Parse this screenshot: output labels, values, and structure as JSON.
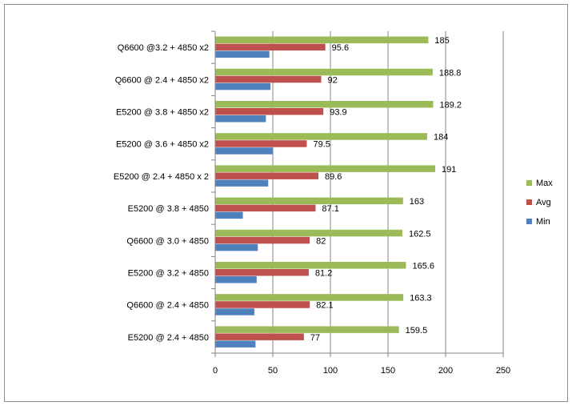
{
  "chart_data": {
    "type": "bar",
    "orientation": "horizontal",
    "categories": [
      "Q6600 @3.2 + 4850 x2",
      "Q6600 @ 2.4 + 4850 x2",
      "E5200 @ 3.8 + 4850 x2",
      "E5200 @ 3.6 + 4850 x2",
      "E5200 @ 2.4 + 4850 x 2",
      "E5200 @ 3.8 + 4850",
      "Q6600 @ 3.0 + 4850",
      "E5200 @ 3.2 + 4850",
      "Q6600 @ 2.4 + 4850",
      "E5200 @ 2.4 + 4850"
    ],
    "series": [
      {
        "name": "Max",
        "color": "#9BBB59",
        "values": [
          185,
          188.8,
          189.2,
          184,
          191,
          163,
          162.5,
          165.6,
          163.3,
          159.5
        ],
        "labels": [
          "185",
          "188.8",
          "189.2",
          "184",
          "191",
          "163",
          "162.5",
          "165.6",
          "163.3",
          "159.5"
        ]
      },
      {
        "name": "Avg",
        "color": "#C0504D",
        "values": [
          95.6,
          92,
          93.9,
          79.5,
          89.6,
          87.1,
          82,
          81.2,
          82.1,
          77
        ],
        "labels": [
          "95.6",
          "92",
          "93.9",
          "79.5",
          "89.6",
          "87.1",
          "82",
          "81.2",
          "82.1",
          "77"
        ]
      },
      {
        "name": "Min",
        "color": "#4F81BD",
        "values": [
          47,
          48,
          44,
          50,
          46,
          24,
          37,
          36,
          34,
          35
        ],
        "labels": []
      }
    ],
    "xlim": [
      0,
      250
    ],
    "xticks": [
      0,
      50,
      100,
      150,
      200,
      250
    ],
    "xtick_labels": [
      "0",
      "50",
      "100",
      "150",
      "200",
      "250"
    ],
    "grid": "vertical major gridlines",
    "legend": {
      "placement": "right",
      "entries": [
        "Max",
        "Avg",
        "Min"
      ]
    },
    "title": "",
    "xlabel": "",
    "ylabel": ""
  }
}
